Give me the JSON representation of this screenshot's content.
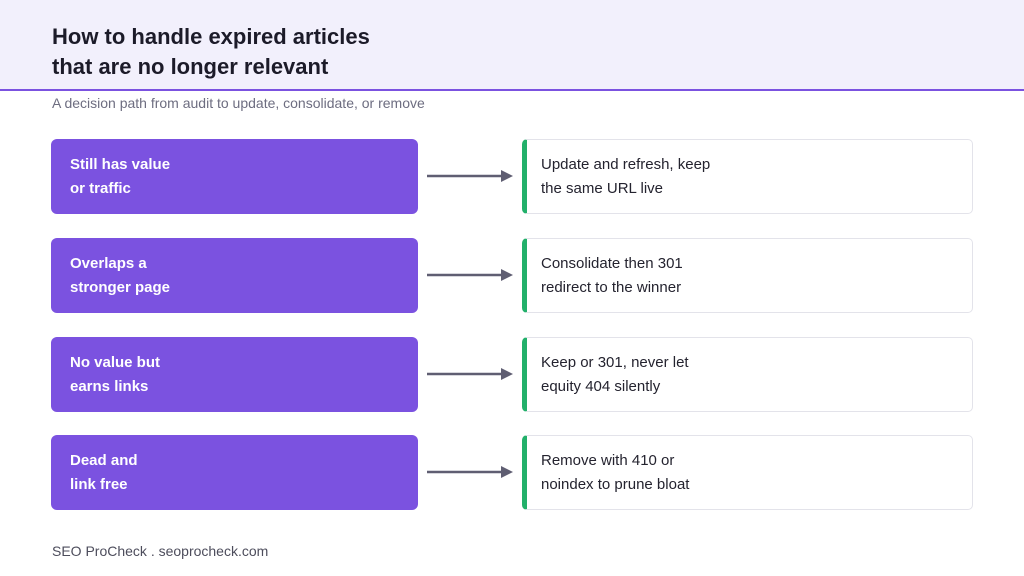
{
  "header": {
    "title_lines": [
      "How to handle expired articles",
      "that are no longer relevant"
    ],
    "subtitle": "A decision path from audit to update, consolidate, or remove"
  },
  "rows": [
    {
      "condition": [
        "Still has value",
        "or traffic"
      ],
      "action": [
        "Update and refresh, keep",
        "the same URL live"
      ]
    },
    {
      "condition": [
        "Overlaps a",
        "stronger page"
      ],
      "action": [
        "Consolidate then 301",
        "redirect to the winner"
      ]
    },
    {
      "condition": [
        "No value but",
        "earns links"
      ],
      "action": [
        "Keep or 301, never let",
        "equity 404 silently"
      ]
    },
    {
      "condition": [
        "Dead and",
        "link free"
      ],
      "action": [
        "Remove with 410 or",
        "noindex to prune bloat"
      ]
    }
  ],
  "footer": "SEO ProCheck . seoprocheck.com",
  "colors": {
    "condition_fill": "#7b52e0",
    "action_accent": "#22b06a",
    "header_bg": "#f2f0fc",
    "arrow": "#5f5e72"
  }
}
